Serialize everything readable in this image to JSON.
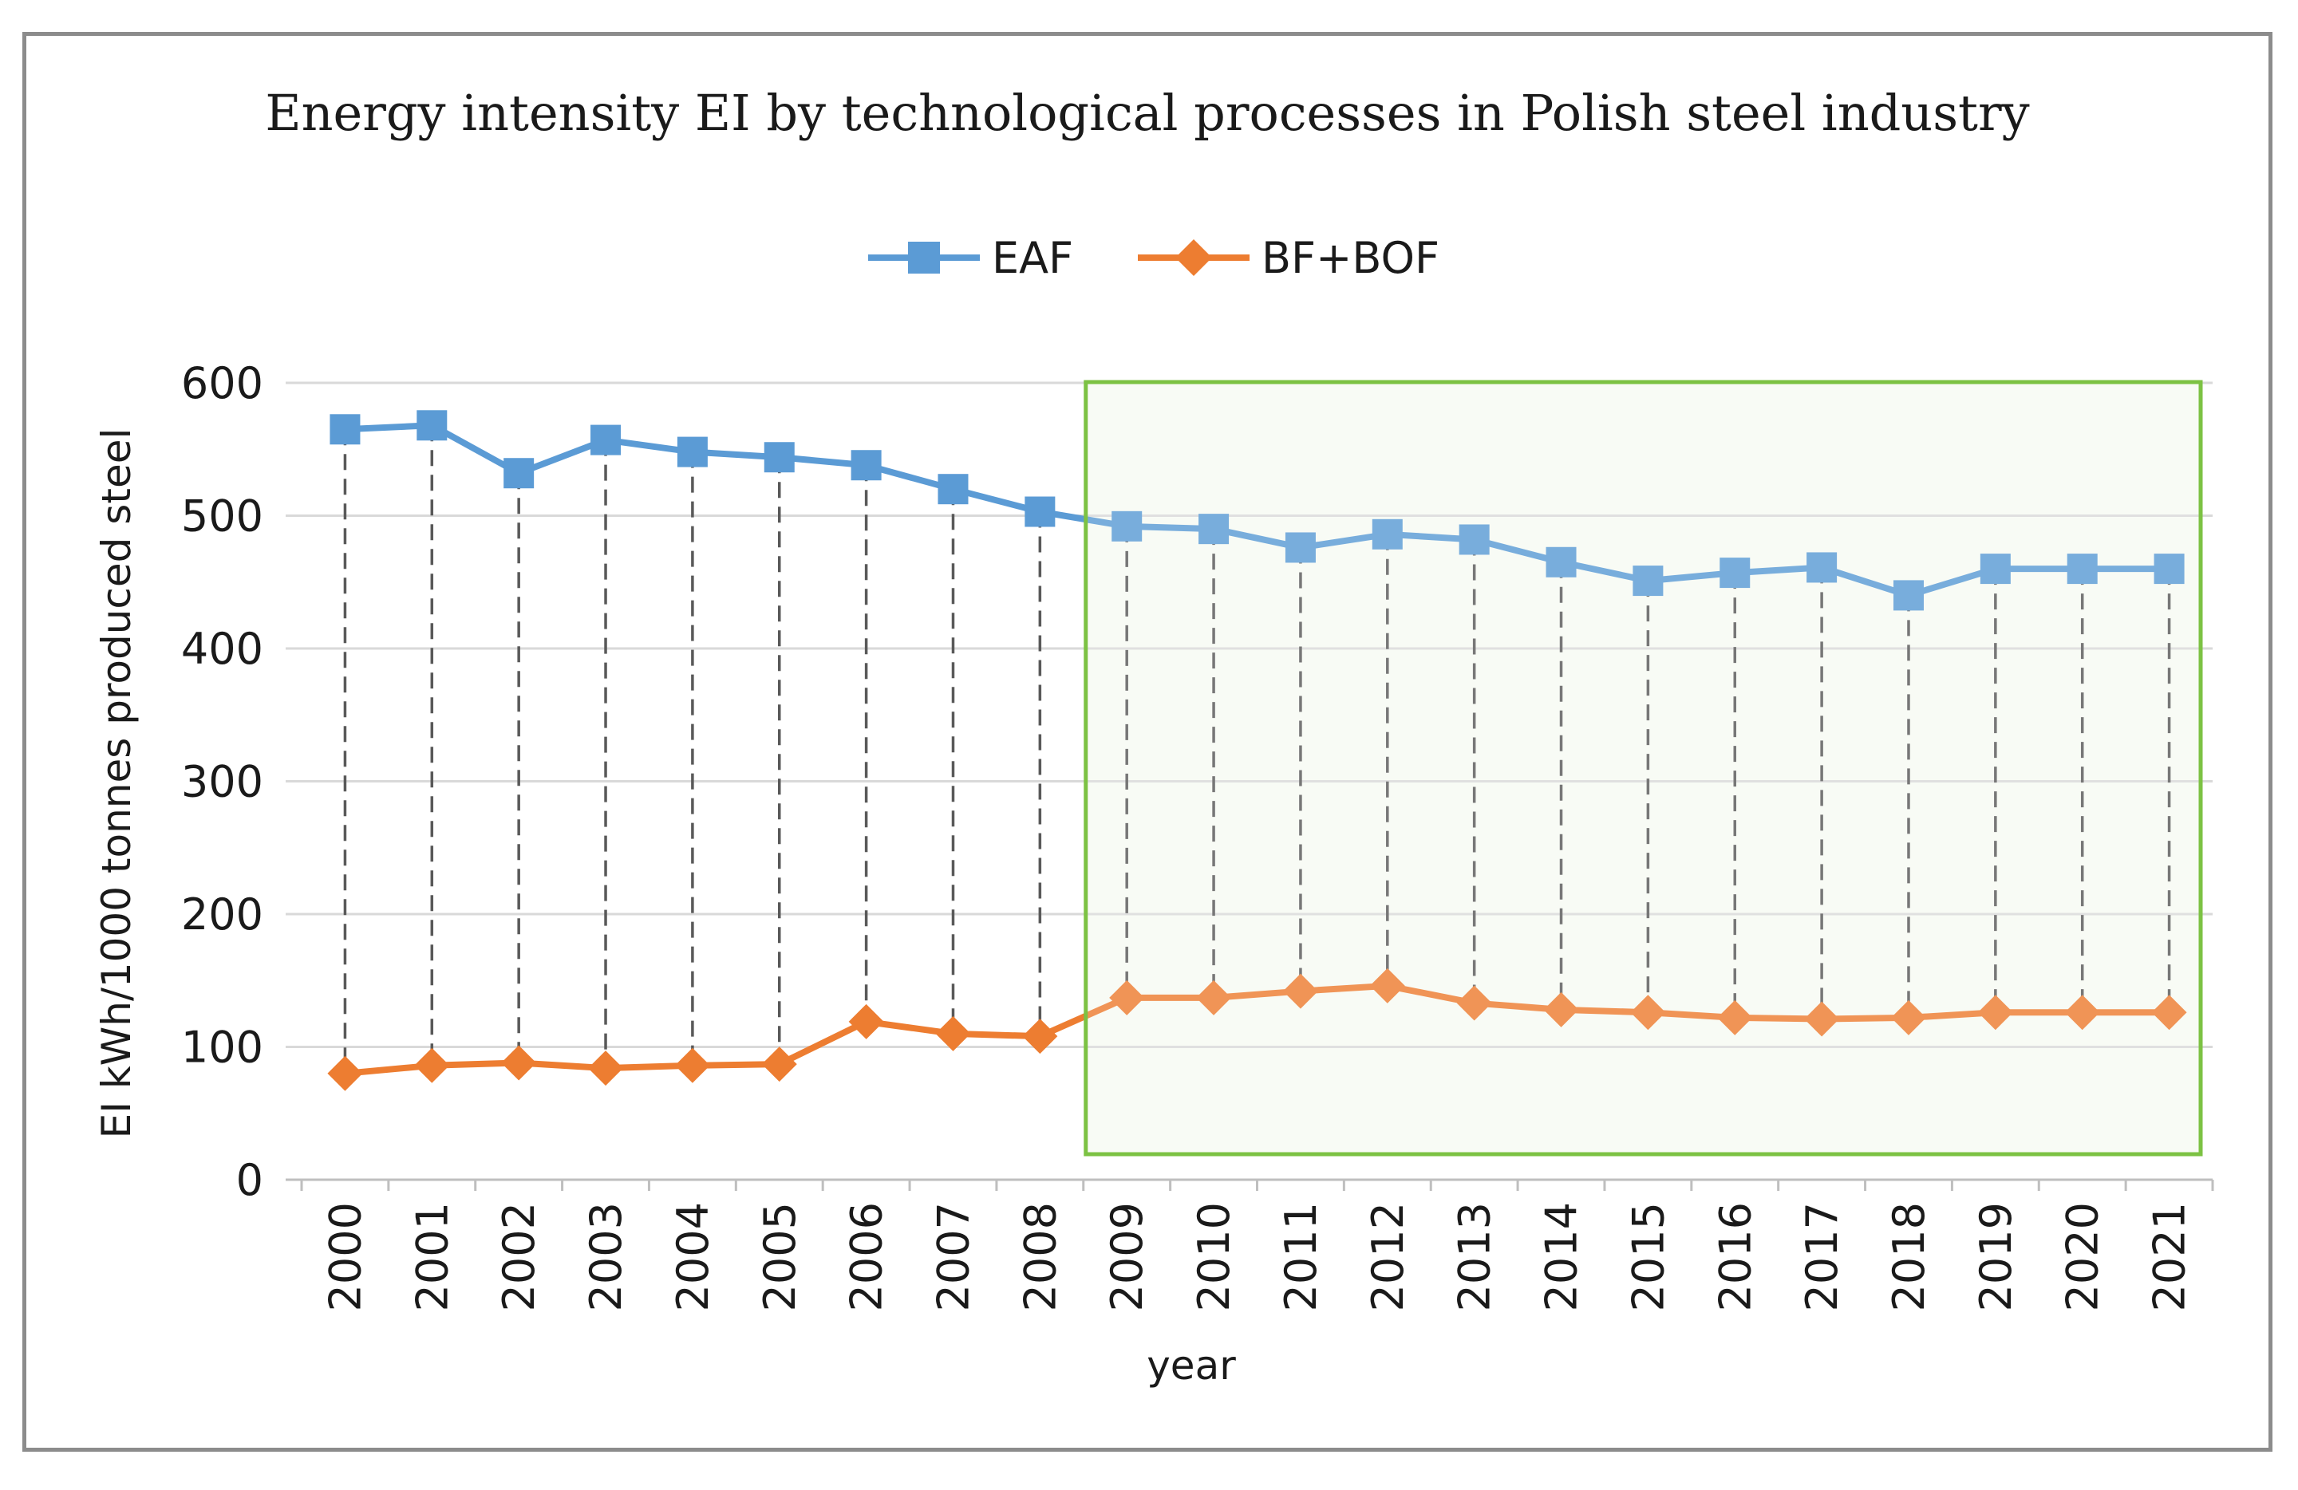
{
  "chart_data": {
    "type": "line",
    "title": "Energy intensity EI by technological  processes in Polish steel industry",
    "xlabel": "year",
    "ylabel": "EI   kWh/1000 tonnes produced steel",
    "ylim": [
      0,
      600
    ],
    "yticks": [
      0,
      100,
      200,
      300,
      400,
      500,
      600
    ],
    "grid": true,
    "legend_position": "top-center",
    "categories": [
      "2000",
      "2001",
      "2002",
      "2003",
      "2004",
      "2005",
      "2006",
      "2007",
      "2008",
      "2009",
      "2010",
      "2011",
      "2012",
      "2013",
      "2014",
      "2015",
      "2016",
      "2017",
      "2018",
      "2019",
      "2020",
      "2021"
    ],
    "series": [
      {
        "name": "EAF",
        "marker": "square",
        "color": "#5b9bd5",
        "values": [
          565,
          568,
          532,
          557,
          548,
          544,
          538,
          520,
          503,
          492,
          490,
          476,
          486,
          482,
          465,
          451,
          457,
          461,
          440,
          460,
          460,
          460
        ]
      },
      {
        "name": "BF+BOF",
        "marker": "diamond",
        "color": "#ed7d31",
        "values": [
          80,
          86,
          88,
          84,
          86,
          87,
          119,
          110,
          108,
          137,
          137,
          142,
          146,
          133,
          128,
          126,
          122,
          121,
          122,
          126,
          126,
          126
        ]
      }
    ],
    "highlight": {
      "from_category": "2009",
      "to_category": "2021",
      "border_color": "#7cc243",
      "fill_color": "#f7faf3"
    }
  }
}
